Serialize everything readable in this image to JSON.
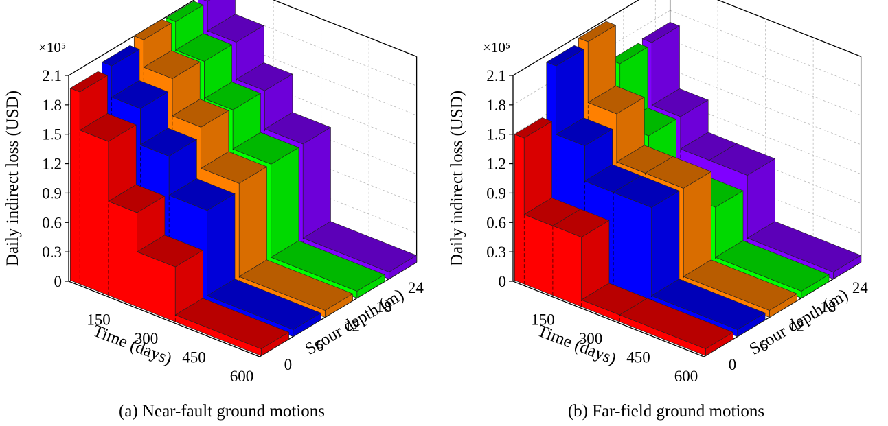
{
  "chart_data": [
    {
      "type": "3d-bar",
      "caption": "(a) Near-fault ground motions",
      "zlabel": "Daily indirect loss (USD)",
      "xlabel": "Time (days)",
      "ylabel": "Scour depth (m)",
      "multiplier": "×10⁵",
      "zlim": [
        0,
        2.1
      ],
      "z_ticks": [
        "0",
        "0.3",
        "0.6",
        "0.9",
        "1.2",
        "1.5",
        "1.8",
        "2.1"
      ],
      "x_ticks": [
        "150",
        "300",
        "450",
        "600"
      ],
      "y_ticks": [
        "0",
        "6",
        "12",
        "18",
        "24"
      ],
      "x_steps_days": [
        0,
        30,
        120,
        210,
        330,
        600
      ],
      "series": [
        {
          "scour_depth": 0,
          "color": "#ff0000",
          "values": [
            1.96,
            1.57,
            0.96,
            0.56,
            0.07
          ]
        },
        {
          "scour_depth": 6,
          "color": "#0000ff",
          "values": [
            2.03,
            1.71,
            1.34,
            0.94,
            0.07
          ]
        },
        {
          "scour_depth": 12,
          "color": "#ff8000",
          "values": [
            2.1,
            1.82,
            1.44,
            1.02,
            0.07
          ]
        },
        {
          "scour_depth": 18,
          "color": "#00ff00",
          "values": [
            2.09,
            1.8,
            1.42,
            1.02,
            0.07
          ]
        },
        {
          "scour_depth": 24,
          "color": "#8000ff",
          "values": [
            2.1,
            1.8,
            1.42,
            1.03,
            0.07
          ]
        }
      ]
    },
    {
      "type": "3d-bar",
      "caption": "(b) Far-field ground motions",
      "zlabel": "Daily indirect loss (USD)",
      "xlabel": "Time (days)",
      "ylabel": "Scour depth (m)",
      "multiplier": "×10⁵",
      "zlim": [
        0,
        2.1
      ],
      "z_ticks": [
        "0",
        "0.3",
        "0.6",
        "0.9",
        "1.2",
        "1.5",
        "1.8",
        "2.1"
      ],
      "x_ticks": [
        "150",
        "300",
        "450",
        "600"
      ],
      "y_ticks": [
        "0",
        "6",
        "12",
        "18",
        "24"
      ],
      "x_steps_days": [
        0,
        30,
        120,
        210,
        330,
        600
      ],
      "series": [
        {
          "scour_depth": 0,
          "color": "#ff0000",
          "values": [
            1.49,
            0.71,
            0.71,
            0.07,
            0.07
          ]
        },
        {
          "scour_depth": 6,
          "color": "#0000ff",
          "values": [
            2.03,
            1.33,
            0.97,
            0.97,
            0.07
          ]
        },
        {
          "scour_depth": 12,
          "color": "#ff8000",
          "values": [
            2.08,
            1.46,
            0.97,
            0.97,
            0.07
          ]
        },
        {
          "scour_depth": 18,
          "color": "#00ff00",
          "values": [
            1.66,
            1.04,
            0.58,
            0.58,
            0.07
          ]
        },
        {
          "scour_depth": 24,
          "color": "#8000ff",
          "values": [
            1.68,
            1.04,
            0.71,
            0.71,
            0.07
          ]
        }
      ]
    }
  ]
}
